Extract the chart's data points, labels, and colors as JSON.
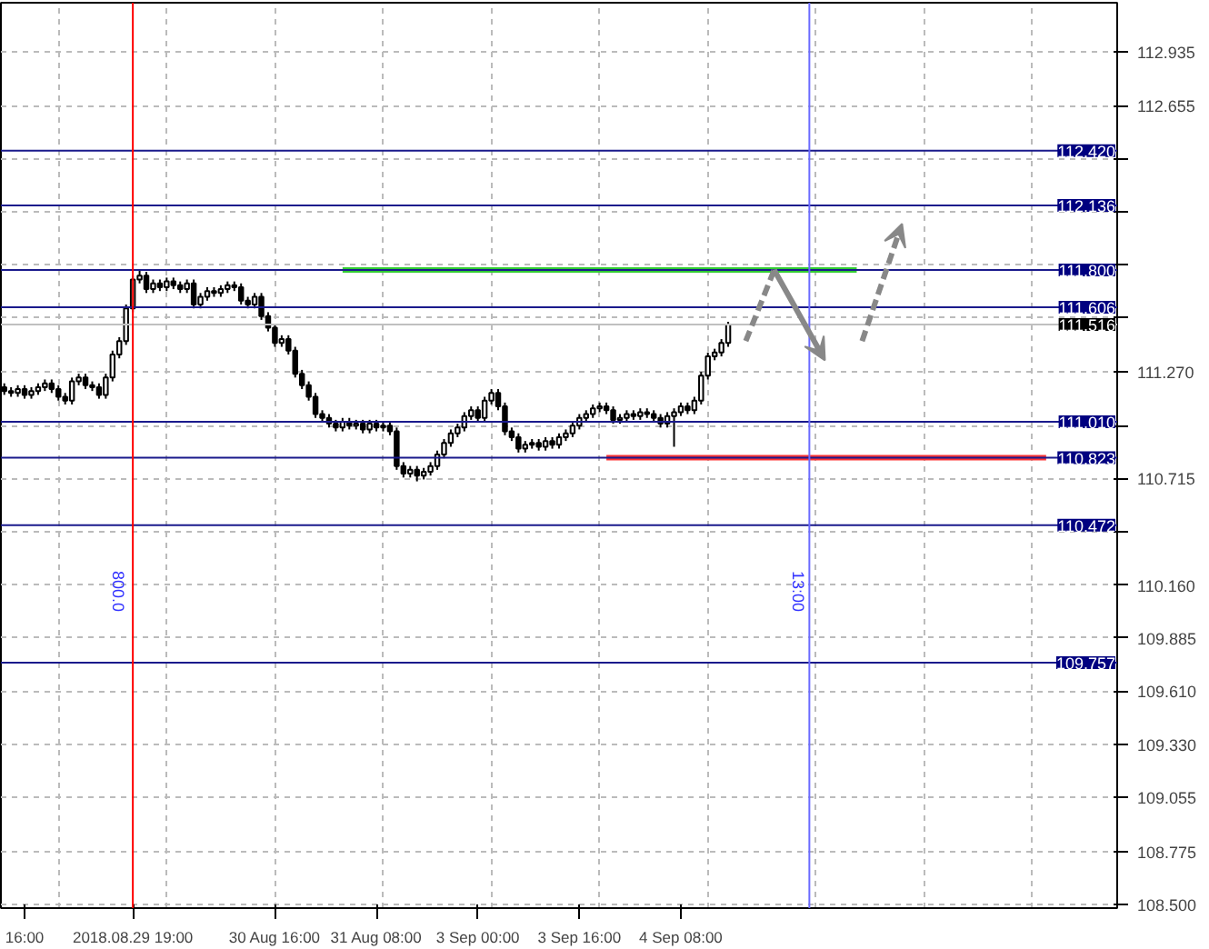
{
  "chart_data": {
    "type": "candlestick",
    "color": "#000000",
    "categories": [
      null,
      null,
      null,
      "16:00",
      null,
      null,
      null,
      null,
      null,
      null,
      null,
      null,
      null,
      null,
      null,
      null,
      null,
      null,
      null,
      "2018.08.29 19:00",
      null,
      null,
      null,
      null,
      null,
      null,
      null,
      null,
      null,
      null,
      null,
      null,
      null,
      null,
      null,
      null,
      null,
      null,
      null,
      null,
      "30 Aug 16:00",
      null,
      null,
      null,
      null,
      null,
      null,
      null,
      null,
      null,
      null,
      null,
      null,
      null,
      null,
      "31 Aug 08:00",
      null,
      null,
      null,
      null,
      null,
      null,
      null,
      null,
      null,
      null,
      null,
      null,
      null,
      null,
      "3 Sep 00:00",
      null,
      null,
      null,
      null,
      null,
      null,
      null,
      null,
      null,
      null,
      null,
      null,
      null,
      null,
      "3 Sep 16:00",
      null,
      null,
      null,
      null,
      null,
      null,
      null,
      null,
      null,
      null,
      null,
      null,
      null,
      null,
      "4 Sep 08:00",
      null,
      null,
      null,
      null,
      null,
      null,
      null,
      null,
      null,
      null,
      null,
      null,
      null,
      null,
      null,
      null,
      null,
      null,
      null,
      null,
      null,
      null,
      null,
      null,
      null,
      null,
      null,
      null,
      null,
      null,
      null,
      null,
      null,
      null,
      null,
      null,
      null,
      null,
      null,
      null,
      null,
      null,
      null,
      null,
      null,
      null,
      null,
      null,
      null,
      null,
      null,
      null,
      null,
      null,
      null,
      null,
      null,
      null,
      null,
      null,
      null,
      null,
      null,
      null
    ],
    "ohlc": [
      [
        111.19,
        111.21,
        111.15,
        111.17
      ],
      [
        111.17,
        111.19,
        111.14,
        111.16
      ],
      [
        111.16,
        111.2,
        111.14,
        111.18
      ],
      [
        111.18,
        111.2,
        111.13,
        111.15
      ],
      [
        111.15,
        111.19,
        111.13,
        111.17
      ],
      [
        111.17,
        111.21,
        111.15,
        111.19
      ],
      [
        111.19,
        111.23,
        111.17,
        111.21
      ],
      [
        111.21,
        111.23,
        111.16,
        111.18
      ],
      [
        111.18,
        111.2,
        111.12,
        111.14
      ],
      [
        111.14,
        111.16,
        111.1,
        111.12
      ],
      [
        111.12,
        111.24,
        111.1,
        111.22
      ],
      [
        111.22,
        111.26,
        111.2,
        111.24
      ],
      [
        111.24,
        111.26,
        111.18,
        111.2
      ],
      [
        111.2,
        111.22,
        111.17,
        111.19
      ],
      [
        111.19,
        111.21,
        111.13,
        111.15
      ],
      [
        111.15,
        111.26,
        111.13,
        111.24
      ],
      [
        111.24,
        111.38,
        111.22,
        111.36
      ],
      [
        111.36,
        111.45,
        111.34,
        111.43
      ],
      [
        111.43,
        111.62,
        111.41,
        111.6
      ],
      [
        111.6,
        111.77,
        111.58,
        111.75
      ],
      [
        111.75,
        111.8,
        111.73,
        111.77
      ],
      [
        111.77,
        111.79,
        111.68,
        111.7
      ],
      [
        111.7,
        111.75,
        111.68,
        111.73
      ],
      [
        111.73,
        111.75,
        111.69,
        111.71
      ],
      [
        111.71,
        111.76,
        111.69,
        111.74
      ],
      [
        111.74,
        111.76,
        111.7,
        111.72
      ],
      [
        111.72,
        111.74,
        111.68,
        111.7
      ],
      [
        111.7,
        111.75,
        111.68,
        111.73
      ],
      [
        111.73,
        111.75,
        111.6,
        111.62
      ],
      [
        111.62,
        111.68,
        111.6,
        111.66
      ],
      [
        111.66,
        111.71,
        111.64,
        111.69
      ],
      [
        111.69,
        111.71,
        111.66,
        111.68
      ],
      [
        111.68,
        111.72,
        111.66,
        111.7
      ],
      [
        111.7,
        111.74,
        111.68,
        111.72
      ],
      [
        111.72,
        111.74,
        111.69,
        111.71
      ],
      [
        111.71,
        111.73,
        111.62,
        111.64
      ],
      [
        111.64,
        111.66,
        111.6,
        111.62
      ],
      [
        111.62,
        111.68,
        111.6,
        111.66
      ],
      [
        111.66,
        111.68,
        111.54,
        111.56
      ],
      [
        111.56,
        111.58,
        111.48,
        111.5
      ],
      [
        111.5,
        111.52,
        111.4,
        111.42
      ],
      [
        111.42,
        111.46,
        111.4,
        111.44
      ],
      [
        111.44,
        111.46,
        111.36,
        111.38
      ],
      [
        111.38,
        111.4,
        111.24,
        111.26
      ],
      [
        111.26,
        111.28,
        111.18,
        111.2
      ],
      [
        111.2,
        111.22,
        111.12,
        111.14
      ],
      [
        111.14,
        111.16,
        111.03,
        111.05
      ],
      [
        111.05,
        111.07,
        111.01,
        111.03
      ],
      [
        111.03,
        111.05,
        110.98,
        111.0
      ],
      [
        111.0,
        111.02,
        110.96,
        110.98
      ],
      [
        110.98,
        111.03,
        110.96,
        111.01
      ],
      [
        111.01,
        111.03,
        110.97,
        110.99
      ],
      [
        110.99,
        111.02,
        110.97,
        111.0
      ],
      [
        111.0,
        111.02,
        110.95,
        110.97
      ],
      [
        110.97,
        111.02,
        110.95,
        111.0
      ],
      [
        111.0,
        111.02,
        110.96,
        110.98
      ],
      [
        110.98,
        111.01,
        110.96,
        110.99
      ],
      [
        110.99,
        111.01,
        110.94,
        110.96
      ],
      [
        110.96,
        110.98,
        110.76,
        110.78
      ],
      [
        110.78,
        110.8,
        110.72,
        110.74
      ],
      [
        110.74,
        110.78,
        110.72,
        110.76
      ],
      [
        110.76,
        110.78,
        110.7,
        110.73
      ],
      [
        110.73,
        110.77,
        110.71,
        110.75
      ],
      [
        110.75,
        110.8,
        110.73,
        110.78
      ],
      [
        110.78,
        110.86,
        110.76,
        110.84
      ],
      [
        110.84,
        110.92,
        110.82,
        110.9
      ],
      [
        110.9,
        110.97,
        110.88,
        110.95
      ],
      [
        110.95,
        111.0,
        110.93,
        110.98
      ],
      [
        110.98,
        111.06,
        110.96,
        111.04
      ],
      [
        111.04,
        111.09,
        111.02,
        111.07
      ],
      [
        111.07,
        111.09,
        111.01,
        111.03
      ],
      [
        111.03,
        111.14,
        111.01,
        111.12
      ],
      [
        111.12,
        111.18,
        111.1,
        111.16
      ],
      [
        111.16,
        111.18,
        111.07,
        111.09
      ],
      [
        111.09,
        111.11,
        110.94,
        110.96
      ],
      [
        110.96,
        110.98,
        110.91,
        110.93
      ],
      [
        110.93,
        110.95,
        110.85,
        110.87
      ],
      [
        110.87,
        110.91,
        110.85,
        110.89
      ],
      [
        110.89,
        110.92,
        110.87,
        110.9
      ],
      [
        110.9,
        110.92,
        110.86,
        110.88
      ],
      [
        110.88,
        110.93,
        110.86,
        110.91
      ],
      [
        110.91,
        110.93,
        110.87,
        110.89
      ],
      [
        110.89,
        110.95,
        110.87,
        110.93
      ],
      [
        110.93,
        110.97,
        110.91,
        110.95
      ],
      [
        110.95,
        111.01,
        110.93,
        110.99
      ],
      [
        110.99,
        111.05,
        110.97,
        111.03
      ],
      [
        111.03,
        111.07,
        111.01,
        111.05
      ],
      [
        111.05,
        111.1,
        111.03,
        111.08
      ],
      [
        111.08,
        111.11,
        111.06,
        111.09
      ],
      [
        111.09,
        111.11,
        111.05,
        111.07
      ],
      [
        111.07,
        111.09,
        111.0,
        111.02
      ],
      [
        111.02,
        111.05,
        111.0,
        111.03
      ],
      [
        111.03,
        111.07,
        111.01,
        111.05
      ],
      [
        111.05,
        111.07,
        111.02,
        111.04
      ],
      [
        111.04,
        111.08,
        111.02,
        111.06
      ],
      [
        111.06,
        111.08,
        111.03,
        111.05
      ],
      [
        111.05,
        111.07,
        111.01,
        111.03
      ],
      [
        111.03,
        111.05,
        110.98,
        111.0
      ],
      [
        111.0,
        111.06,
        110.98,
        111.04
      ],
      [
        111.04,
        111.08,
        110.88,
        111.06
      ],
      [
        111.06,
        111.11,
        111.04,
        111.09
      ],
      [
        111.09,
        111.11,
        111.05,
        111.07
      ],
      [
        111.07,
        111.14,
        111.05,
        111.12
      ],
      [
        111.12,
        111.27,
        111.1,
        111.25
      ],
      [
        111.25,
        111.37,
        111.23,
        111.35
      ],
      [
        111.35,
        111.39,
        111.33,
        111.37
      ],
      [
        111.37,
        111.44,
        111.35,
        111.42
      ],
      [
        111.42,
        111.53,
        111.4,
        111.516
      ],
      null,
      null,
      null,
      null,
      null,
      null,
      null,
      null,
      null,
      null,
      null,
      null,
      null,
      null,
      null,
      null,
      null,
      null,
      null,
      null,
      null,
      null,
      null,
      null,
      null,
      null,
      null,
      null,
      null,
      null,
      null,
      null,
      null,
      null,
      null,
      null,
      null,
      null,
      null,
      null,
      null,
      null,
      null,
      null,
      null,
      null,
      null,
      null,
      null,
      null,
      null,
      null,
      null,
      null,
      null,
      null,
      null
    ],
    "annotations": [
      "800.0",
      "13:00"
    ],
    "ylim": [
      108.48,
      113.19
    ],
    "yticks": [
      112.935,
      112.655,
      {
        "value": 112.38,
        "label": null
      },
      {
        "value": 112.105,
        "label": null
      },
      {
        "value": 111.83,
        "label": null
      },
      {
        "value": 111.55,
        "label": null
      },
      {
        "value": 111.27,
        "label": "111.270"
      },
      {
        "value": 110.99,
        "label": null
      },
      110.715,
      {
        "value": 110.44,
        "label": null
      },
      {
        "value": 110.16,
        "label": "110.160"
      },
      109.885,
      {
        "value": 109.61,
        "label": "109.610"
      },
      {
        "value": 109.33,
        "label": "109.330"
      },
      109.055,
      108.775,
      {
        "value": 108.5,
        "label": "108.500"
      }
    ],
    "grid": true,
    "ref_lines": [
      {
        "axis": "y",
        "value": 112.42,
        "label": "112.420",
        "color": "#1a1a8c"
      },
      {
        "axis": "y",
        "value": 112.136,
        "label": "112.136",
        "color": "#1a1a8c"
      },
      {
        "axis": "y",
        "value": 111.8,
        "label": "111.800",
        "color": "#1a1a8c"
      },
      {
        "axis": "y",
        "value": 111.606,
        "label": "111.606",
        "color": "#1a1a8c"
      },
      {
        "axis": "y",
        "value": 111.516,
        "label": "111.516",
        "color": "#c0c0c0"
      },
      {
        "axis": "y",
        "value": 111.01,
        "label": "111.010",
        "color": "#1a1a8c"
      },
      {
        "axis": "y",
        "value": 110.823,
        "label": "110.823",
        "color": "#1a1a8c"
      },
      {
        "axis": "y",
        "value": 110.472,
        "label": "110.472",
        "color": "#1a1a8c"
      },
      {
        "axis": "y",
        "value": 109.757,
        "label": "109.757",
        "color": "#1a1a8c"
      },
      {
        "axis": "y",
        "value": 111.8,
        "color": "#33cc33"
      },
      {
        "axis": "y",
        "value": 110.823,
        "color": "#ff3333"
      }
    ]
  }
}
